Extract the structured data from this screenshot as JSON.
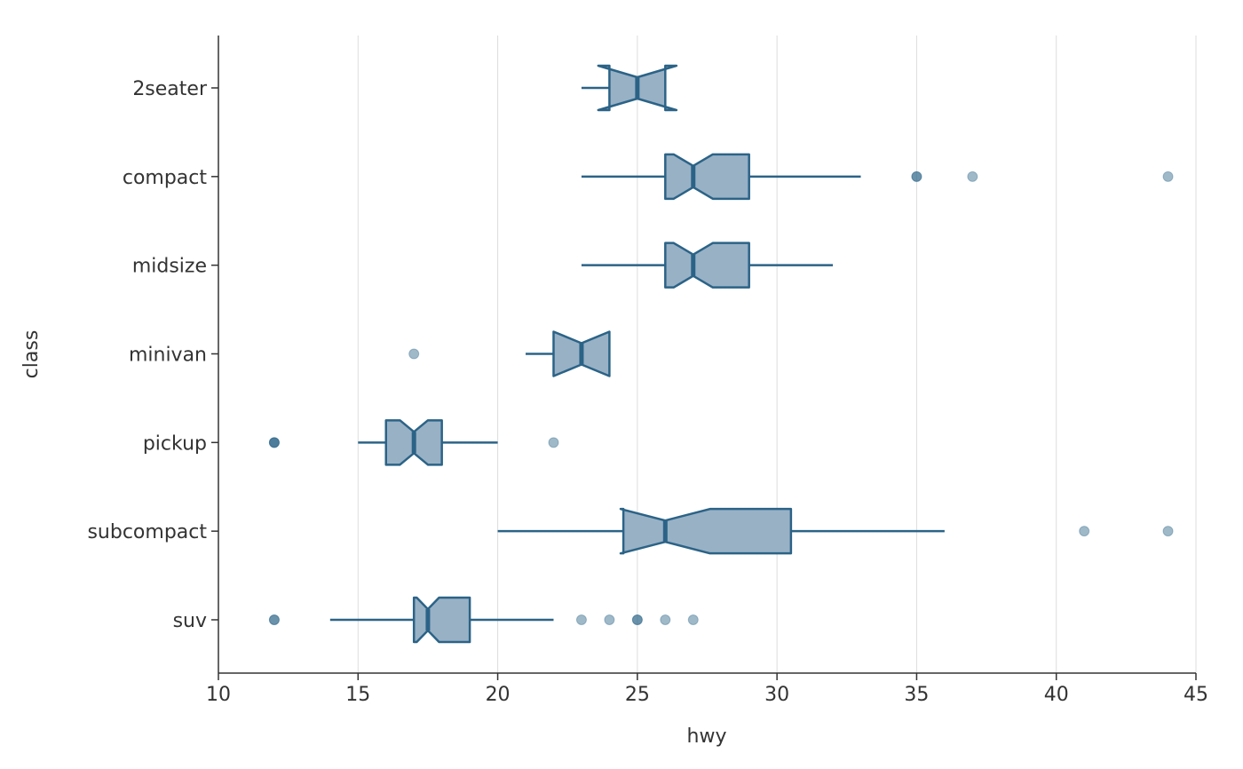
{
  "chart_data": {
    "type": "boxplot",
    "orientation": "horizontal",
    "notched": true,
    "xlabel": "hwy",
    "ylabel": "class",
    "xlim": [
      10,
      45
    ],
    "x_ticks": [
      "10",
      "15",
      "20",
      "25",
      "30",
      "35",
      "40",
      "45"
    ],
    "grid": "vertical major gridlines",
    "colors": {
      "box_fill": "#99b1c5",
      "box_stroke": "#2b6387",
      "outlier": "#2b6387",
      "grid": "#dddddd",
      "axis": "#333333"
    },
    "categories": [
      "2seater",
      "compact",
      "midsize",
      "minivan",
      "pickup",
      "subcompact",
      "suv"
    ],
    "boxes": [
      {
        "category": "2seater",
        "whisker_low": 23,
        "q1": 24,
        "median": 25,
        "q3": 26,
        "whisker_high": 26,
        "notch_low": 23.6,
        "notch_high": 26.4,
        "outliers": []
      },
      {
        "category": "compact",
        "whisker_low": 23,
        "q1": 26,
        "median": 27,
        "q3": 29,
        "whisker_high": 33,
        "notch_low": 26.3,
        "notch_high": 27.7,
        "outliers": [
          35,
          35,
          37,
          44
        ]
      },
      {
        "category": "midsize",
        "whisker_low": 23,
        "q1": 26,
        "median": 27,
        "q3": 29,
        "whisker_high": 32,
        "notch_low": 26.3,
        "notch_high": 27.7,
        "outliers": []
      },
      {
        "category": "minivan",
        "whisker_low": 21,
        "q1": 22,
        "median": 23,
        "q3": 24,
        "whisker_high": 24,
        "notch_low": 22,
        "notch_high": 24,
        "outliers": [
          17
        ]
      },
      {
        "category": "pickup",
        "whisker_low": 15,
        "q1": 16,
        "median": 17,
        "q3": 18,
        "whisker_high": 20,
        "notch_low": 16.5,
        "notch_high": 17.5,
        "outliers": [
          12,
          12,
          12,
          22
        ]
      },
      {
        "category": "subcompact",
        "whisker_low": 20,
        "q1": 24.5,
        "median": 26,
        "q3": 30.5,
        "whisker_high": 36,
        "notch_low": 24.4,
        "notch_high": 27.6,
        "outliers": [
          41,
          44
        ]
      },
      {
        "category": "suv",
        "whisker_low": 14,
        "q1": 17,
        "median": 17.5,
        "q3": 19,
        "whisker_high": 22,
        "notch_low": 17.1,
        "notch_high": 17.9,
        "outliers": [
          12,
          12,
          23,
          24,
          25,
          25,
          26,
          27
        ]
      }
    ]
  }
}
